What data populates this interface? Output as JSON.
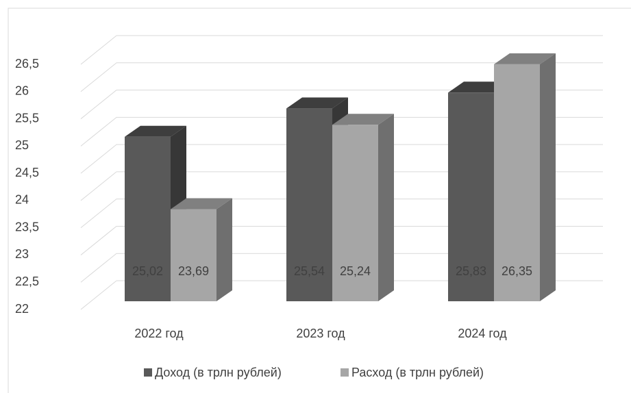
{
  "chart_data": {
    "type": "bar3d",
    "categories": [
      "2022 год",
      "2023 год",
      "2024 год"
    ],
    "series": [
      {
        "name": "Доход (в трлн рублей)",
        "color": "#595959",
        "values": [
          25.02,
          25.54,
          25.83
        ],
        "value_labels": [
          "25,02",
          "25,54",
          "25,83"
        ]
      },
      {
        "name": "Расход (в трлн рублей)",
        "color": "#a6a6a6",
        "values": [
          23.69,
          25.24,
          26.35
        ],
        "value_labels": [
          "23,69",
          "25,24",
          "26,35"
        ]
      }
    ],
    "ylim": [
      22,
      26.5
    ],
    "yticks": [
      22,
      {
        "value": 22.5,
        "label": "22,5"
      },
      23,
      {
        "value": 23.5,
        "label": "23,5"
      },
      24,
      {
        "value": 24.5,
        "label": "24,5"
      },
      25,
      {
        "value": 25.5,
        "label": "25,5"
      },
      26,
      {
        "value": 26.5,
        "label": "26,5"
      }
    ],
    "grid": true,
    "legend": "bottom"
  }
}
